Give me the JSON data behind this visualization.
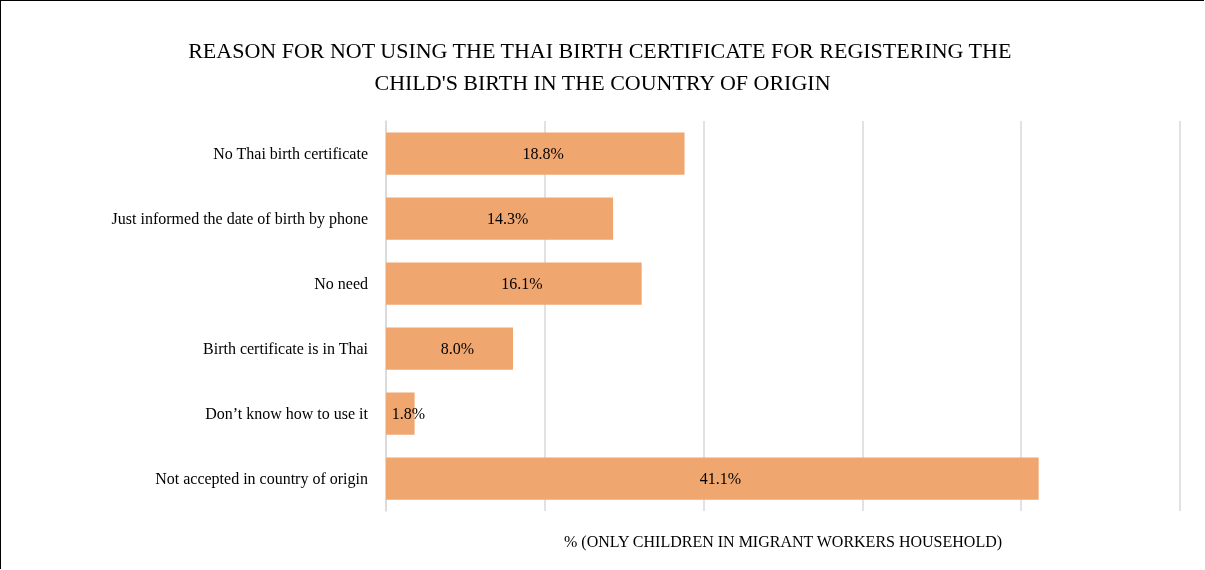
{
  "chart_data": {
    "type": "bar",
    "orientation": "horizontal",
    "title": "REASON FOR NOT USING THE THAI BIRTH CERTIFICATE FOR REGISTERING THE CHILD'S BIRTH IN THE COUNTRY OF ORIGIN",
    "xlabel": "% (ONLY CHILDREN IN MIGRANT WORKERS HOUSEHOLD)",
    "categories": [
      "No Thai birth certificate",
      "Just informed the date of birth by phone",
      "No need",
      "Birth certificate is in Thai",
      "Don’t know how to use it",
      "Not accepted in country of origin"
    ],
    "values": [
      18.8,
      14.3,
      16.1,
      8.0,
      1.8,
      41.1
    ],
    "value_labels": [
      "18.8%",
      "14.3%",
      "16.1%",
      "8.0%",
      "1.8%",
      "41.1%"
    ],
    "color": "#f0a66f",
    "xlim": [
      0,
      50
    ],
    "xticks": [
      {
        "value": 0,
        "label": null
      },
      {
        "value": 10,
        "label": null
      },
      {
        "value": 20,
        "label": null
      },
      {
        "value": 30,
        "label": null
      },
      {
        "value": 40,
        "label": null
      },
      {
        "value": 50,
        "label": null
      }
    ],
    "tick_labels": "y",
    "grid": "x"
  }
}
